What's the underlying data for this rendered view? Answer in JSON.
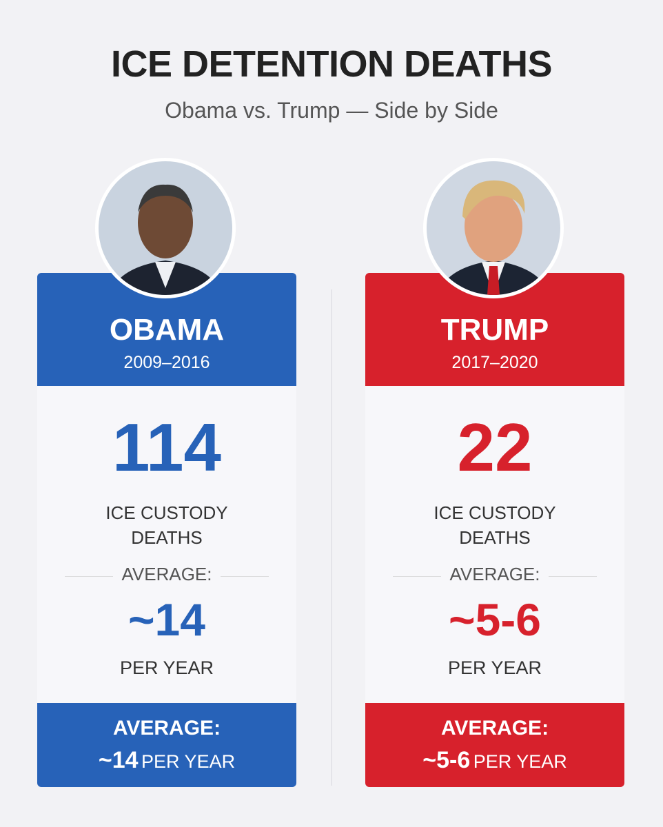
{
  "header": {
    "title": "ICE DETENTION DEATHS",
    "subtitle": "Obama vs. Trump — Side by Side"
  },
  "panels": [
    {
      "name": "OBAMA",
      "years": "2009–2016",
      "count": 114,
      "count_label": "ICE CUSTODY DEATHS",
      "average_label": "AVERAGE:",
      "average": "~14",
      "per_year": "PER YEAR",
      "footer_label": "AVERAGE:",
      "footer_value": "~14",
      "footer_unit": "PER YEAR"
    },
    {
      "name": "TRUMP",
      "years": "2017–2020",
      "count": 22,
      "count_label": "ICE CUSTODY DEATHS",
      "average_label": "AVERAGE:",
      "average": "~5-6",
      "per_year": "PER YEAR",
      "footer_label": "AVERAGE:",
      "footer_value": "~5-6",
      "footer_unit": "PER YEAR"
    }
  ]
}
